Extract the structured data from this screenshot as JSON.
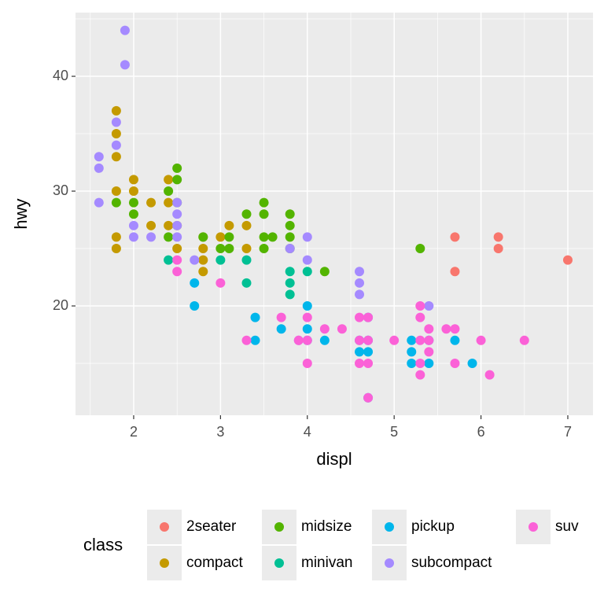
{
  "chart_data": {
    "type": "scatter",
    "x_label": "displ",
    "y_label": "hwy",
    "legend_title": "class",
    "xlim": [
      1.33,
      7.29
    ],
    "ylim": [
      10.48,
      45.55
    ],
    "xticks": [
      2,
      3,
      4,
      5,
      6,
      7
    ],
    "yticks": [
      20,
      30,
      40
    ],
    "xminor": [
      1.5,
      2.5,
      3.5,
      4.5,
      5.5,
      6.5
    ],
    "yminor": [
      15,
      25,
      35,
      45
    ],
    "grid": true,
    "legend_position": "bottom",
    "series": [
      {
        "name": "2seater",
        "color": "#F8766D",
        "x": [
          5.7,
          6.2,
          6.2,
          5.7,
          7.0
        ],
        "values": [
          26,
          26,
          25,
          23,
          24
        ]
      },
      {
        "name": "compact",
        "color": "#C49A00",
        "x": [
          1.8,
          1.8,
          1.8,
          1.8,
          1.8,
          1.8,
          2.0,
          2.0,
          2.2,
          2.2,
          2.4,
          2.4,
          2.4,
          2.5,
          2.5,
          2.8,
          2.8,
          2.8,
          2.8,
          3.0,
          3.1,
          3.3,
          3.3
        ],
        "values": [
          37,
          35,
          33,
          30,
          26,
          25,
          31,
          30,
          29,
          27,
          31,
          29,
          27,
          27,
          25,
          26,
          25,
          24,
          23,
          26,
          27,
          27,
          25
        ]
      },
      {
        "name": "midsize",
        "color": "#53B400",
        "x": [
          1.8,
          2.0,
          2.0,
          2.4,
          2.4,
          2.5,
          2.5,
          2.5,
          2.8,
          3.0,
          3.1,
          3.1,
          3.3,
          3.5,
          3.5,
          3.5,
          3.5,
          3.6,
          3.8,
          3.8,
          3.8,
          3.8,
          4.2,
          5.3
        ],
        "values": [
          29,
          29,
          28,
          30,
          26,
          32,
          31,
          29,
          26,
          25,
          26,
          25,
          28,
          29,
          28,
          26,
          25,
          26,
          28,
          27,
          26,
          25,
          23,
          25
        ]
      },
      {
        "name": "minivan",
        "color": "#00C094",
        "x": [
          2.4,
          3.0,
          3.3,
          3.3,
          3.8,
          3.8,
          3.8,
          4.0
        ],
        "values": [
          24,
          24,
          24,
          22,
          23,
          22,
          21,
          23
        ]
      },
      {
        "name": "pickup",
        "color": "#00B6EB",
        "x": [
          2.7,
          2.7,
          3.4,
          3.4,
          3.7,
          4.0,
          4.0,
          4.0,
          4.2,
          4.6,
          4.6,
          4.7,
          4.7,
          4.7,
          4.7,
          5.2,
          5.2,
          5.2,
          5.4,
          5.4,
          5.7,
          5.9
        ],
        "values": [
          22,
          20,
          19,
          17,
          18,
          20,
          18,
          17,
          17,
          17,
          16,
          19,
          17,
          16,
          12,
          17,
          16,
          15,
          17,
          15,
          17,
          15
        ]
      },
      {
        "name": "subcompact",
        "color": "#A58AFF",
        "x": [
          1.6,
          1.6,
          1.6,
          1.8,
          1.8,
          1.9,
          1.9,
          2.0,
          2.0,
          2.2,
          2.5,
          2.5,
          2.5,
          2.5,
          2.7,
          3.8,
          3.9,
          4.0,
          4.0,
          4.6,
          4.6,
          4.6,
          5.4
        ],
        "values": [
          33,
          32,
          29,
          36,
          34,
          44,
          41,
          27,
          26,
          26,
          29,
          28,
          27,
          26,
          24,
          25,
          17,
          26,
          24,
          23,
          22,
          21,
          20
        ]
      },
      {
        "name": "suv",
        "color": "#FB61D7",
        "x": [
          2.5,
          2.5,
          3.0,
          3.3,
          3.7,
          3.9,
          4.0,
          4.0,
          4.0,
          4.2,
          4.4,
          4.6,
          4.6,
          4.6,
          4.7,
          4.7,
          4.7,
          4.7,
          5.0,
          5.3,
          5.3,
          5.3,
          5.3,
          5.3,
          5.4,
          5.4,
          5.4,
          5.6,
          5.7,
          5.7,
          6.0,
          6.1,
          6.5
        ],
        "values": [
          24,
          23,
          22,
          17,
          19,
          17,
          19,
          17,
          15,
          18,
          18,
          19,
          17,
          15,
          19,
          17,
          15,
          12,
          17,
          20,
          19,
          17,
          15,
          14,
          18,
          17,
          16,
          18,
          18,
          15,
          17,
          14,
          17
        ]
      }
    ]
  }
}
